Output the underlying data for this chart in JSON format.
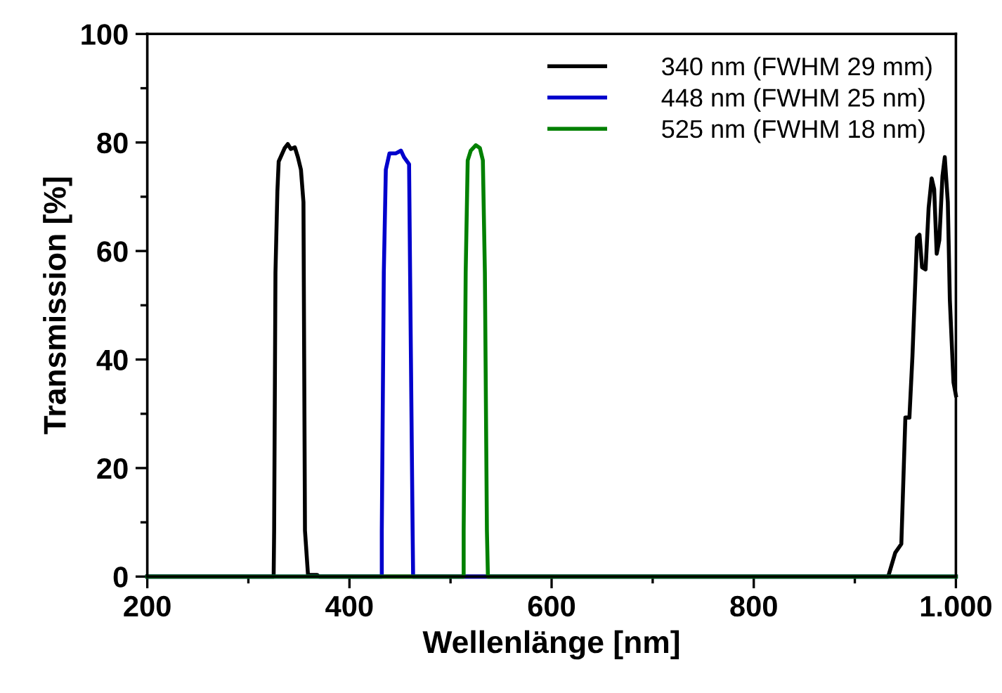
{
  "chart_data": {
    "type": "line",
    "xlabel": "Wellenlänge [nm]",
    "ylabel": "Transmission [%]",
    "xlim": [
      200,
      1000
    ],
    "ylim": [
      0,
      100
    ],
    "xticks": [
      200,
      400,
      600,
      800,
      {
        "value": 1000,
        "label": "1.000"
      }
    ],
    "yticks": [
      0,
      20,
      40,
      60,
      80,
      100
    ],
    "grid": false,
    "legend": "top right",
    "line_style": "solid",
    "marker": "none",
    "series": [
      {
        "name": "340 nm (FWHM 29 mm)",
        "color": "#000000",
        "x": [
          200,
          325,
          325.5,
          326.8,
          328.7,
          330,
          336,
          339,
          342,
          346,
          349,
          352,
          354.5,
          356,
          359,
          362,
          365,
          368,
          370,
          933,
          940,
          946,
          950,
          954,
          957,
          961.5,
          964,
          966.5,
          970,
          973,
          976,
          978.5,
          981,
          983.6,
          986.7,
          989,
          992,
          994,
          997.6,
          1000
        ],
        "values": [
          0,
          0,
          8.5,
          56,
          71,
          76.5,
          79,
          79.7,
          78.8,
          79.1,
          77.3,
          75,
          69,
          8.5,
          0.3,
          0.3,
          0.3,
          0.3,
          0,
          0,
          4.4,
          6,
          29.3,
          29.3,
          40.6,
          62.5,
          63,
          57,
          56.6,
          67.9,
          73.4,
          71.4,
          59.5,
          62,
          73.8,
          77.3,
          69,
          51,
          35.8,
          33.4
        ]
      },
      {
        "name": "448 nm (FWHM 25 nm)",
        "color": "#0000cc",
        "x": [
          200,
          432,
          432,
          434,
          436,
          439.6,
          446,
          451,
          454,
          459,
          460,
          462.5,
          463,
          1000
        ],
        "values": [
          0,
          0,
          8.5,
          56,
          75,
          78,
          78,
          78.5,
          77.3,
          76,
          56,
          8.5,
          0,
          0
        ]
      },
      {
        "name": "525 nm (FWHM 18 nm)",
        "color": "#008000",
        "x": [
          200,
          513,
          513,
          515,
          517,
          520,
          525,
          529,
          532,
          534,
          536,
          537,
          1000
        ],
        "values": [
          0,
          0,
          8.5,
          56,
          76.7,
          78.5,
          79.5,
          79,
          76.7,
          56,
          8.5,
          0,
          0
        ]
      }
    ]
  }
}
